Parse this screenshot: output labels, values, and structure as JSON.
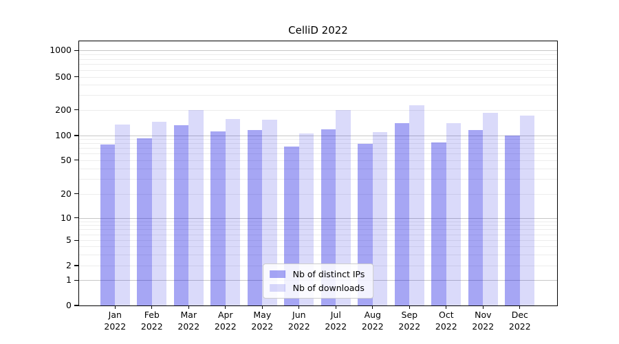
{
  "title": "CelliD 2022",
  "legend": {
    "items": [
      {
        "label": "Nb of distinct IPs"
      },
      {
        "label": "Nb of downloads"
      }
    ]
  },
  "chart_data": {
    "type": "bar",
    "title": "CelliD 2022",
    "yscale": "symlog",
    "grid": true,
    "legend_position": "lower center",
    "months": [
      "Jan",
      "Feb",
      "Mar",
      "Apr",
      "May",
      "Jun",
      "Jul",
      "Aug",
      "Sep",
      "Oct",
      "Nov",
      "Dec"
    ],
    "year": "2022",
    "categories": [
      "Jan 2022",
      "Feb 2022",
      "Mar 2022",
      "Apr 2022",
      "May 2022",
      "Jun 2022",
      "Jul 2022",
      "Aug 2022",
      "Sep 2022",
      "Oct 2022",
      "Nov 2022",
      "Dec 2022"
    ],
    "series": [
      {
        "name": "Nb of distinct IPs",
        "color": "rgba(20,20,225,0.38)",
        "values": [
          78,
          92,
          131,
          112,
          115,
          73,
          118,
          79,
          140,
          83,
          116,
          101
        ]
      },
      {
        "name": "Nb of downloads",
        "color": "rgba(20,20,225,0.155)",
        "values": [
          135,
          145,
          197,
          156,
          153,
          105,
          197,
          110,
          225,
          139,
          184,
          170
        ]
      }
    ],
    "y_tick_values": [
      0,
      1,
      2,
      5,
      10,
      20,
      50,
      100,
      200,
      500,
      1000
    ],
    "y_tick_labels": [
      "0",
      "1",
      "2",
      "5",
      "10",
      "20",
      "50",
      "100",
      "200",
      "500",
      "1000"
    ],
    "grid_major_values": [
      1,
      10,
      100,
      1000
    ],
    "grid_minor_values": [
      2,
      3,
      4,
      5,
      6,
      7,
      8,
      9,
      20,
      30,
      40,
      50,
      60,
      70,
      80,
      90,
      200,
      300,
      400,
      500,
      600,
      700,
      800,
      900
    ],
    "ylim": [
      0,
      1280
    ],
    "colors": {
      "axis": "#000000",
      "grid_major": "#c6c6c6",
      "grid_minor": "#ececec"
    }
  }
}
